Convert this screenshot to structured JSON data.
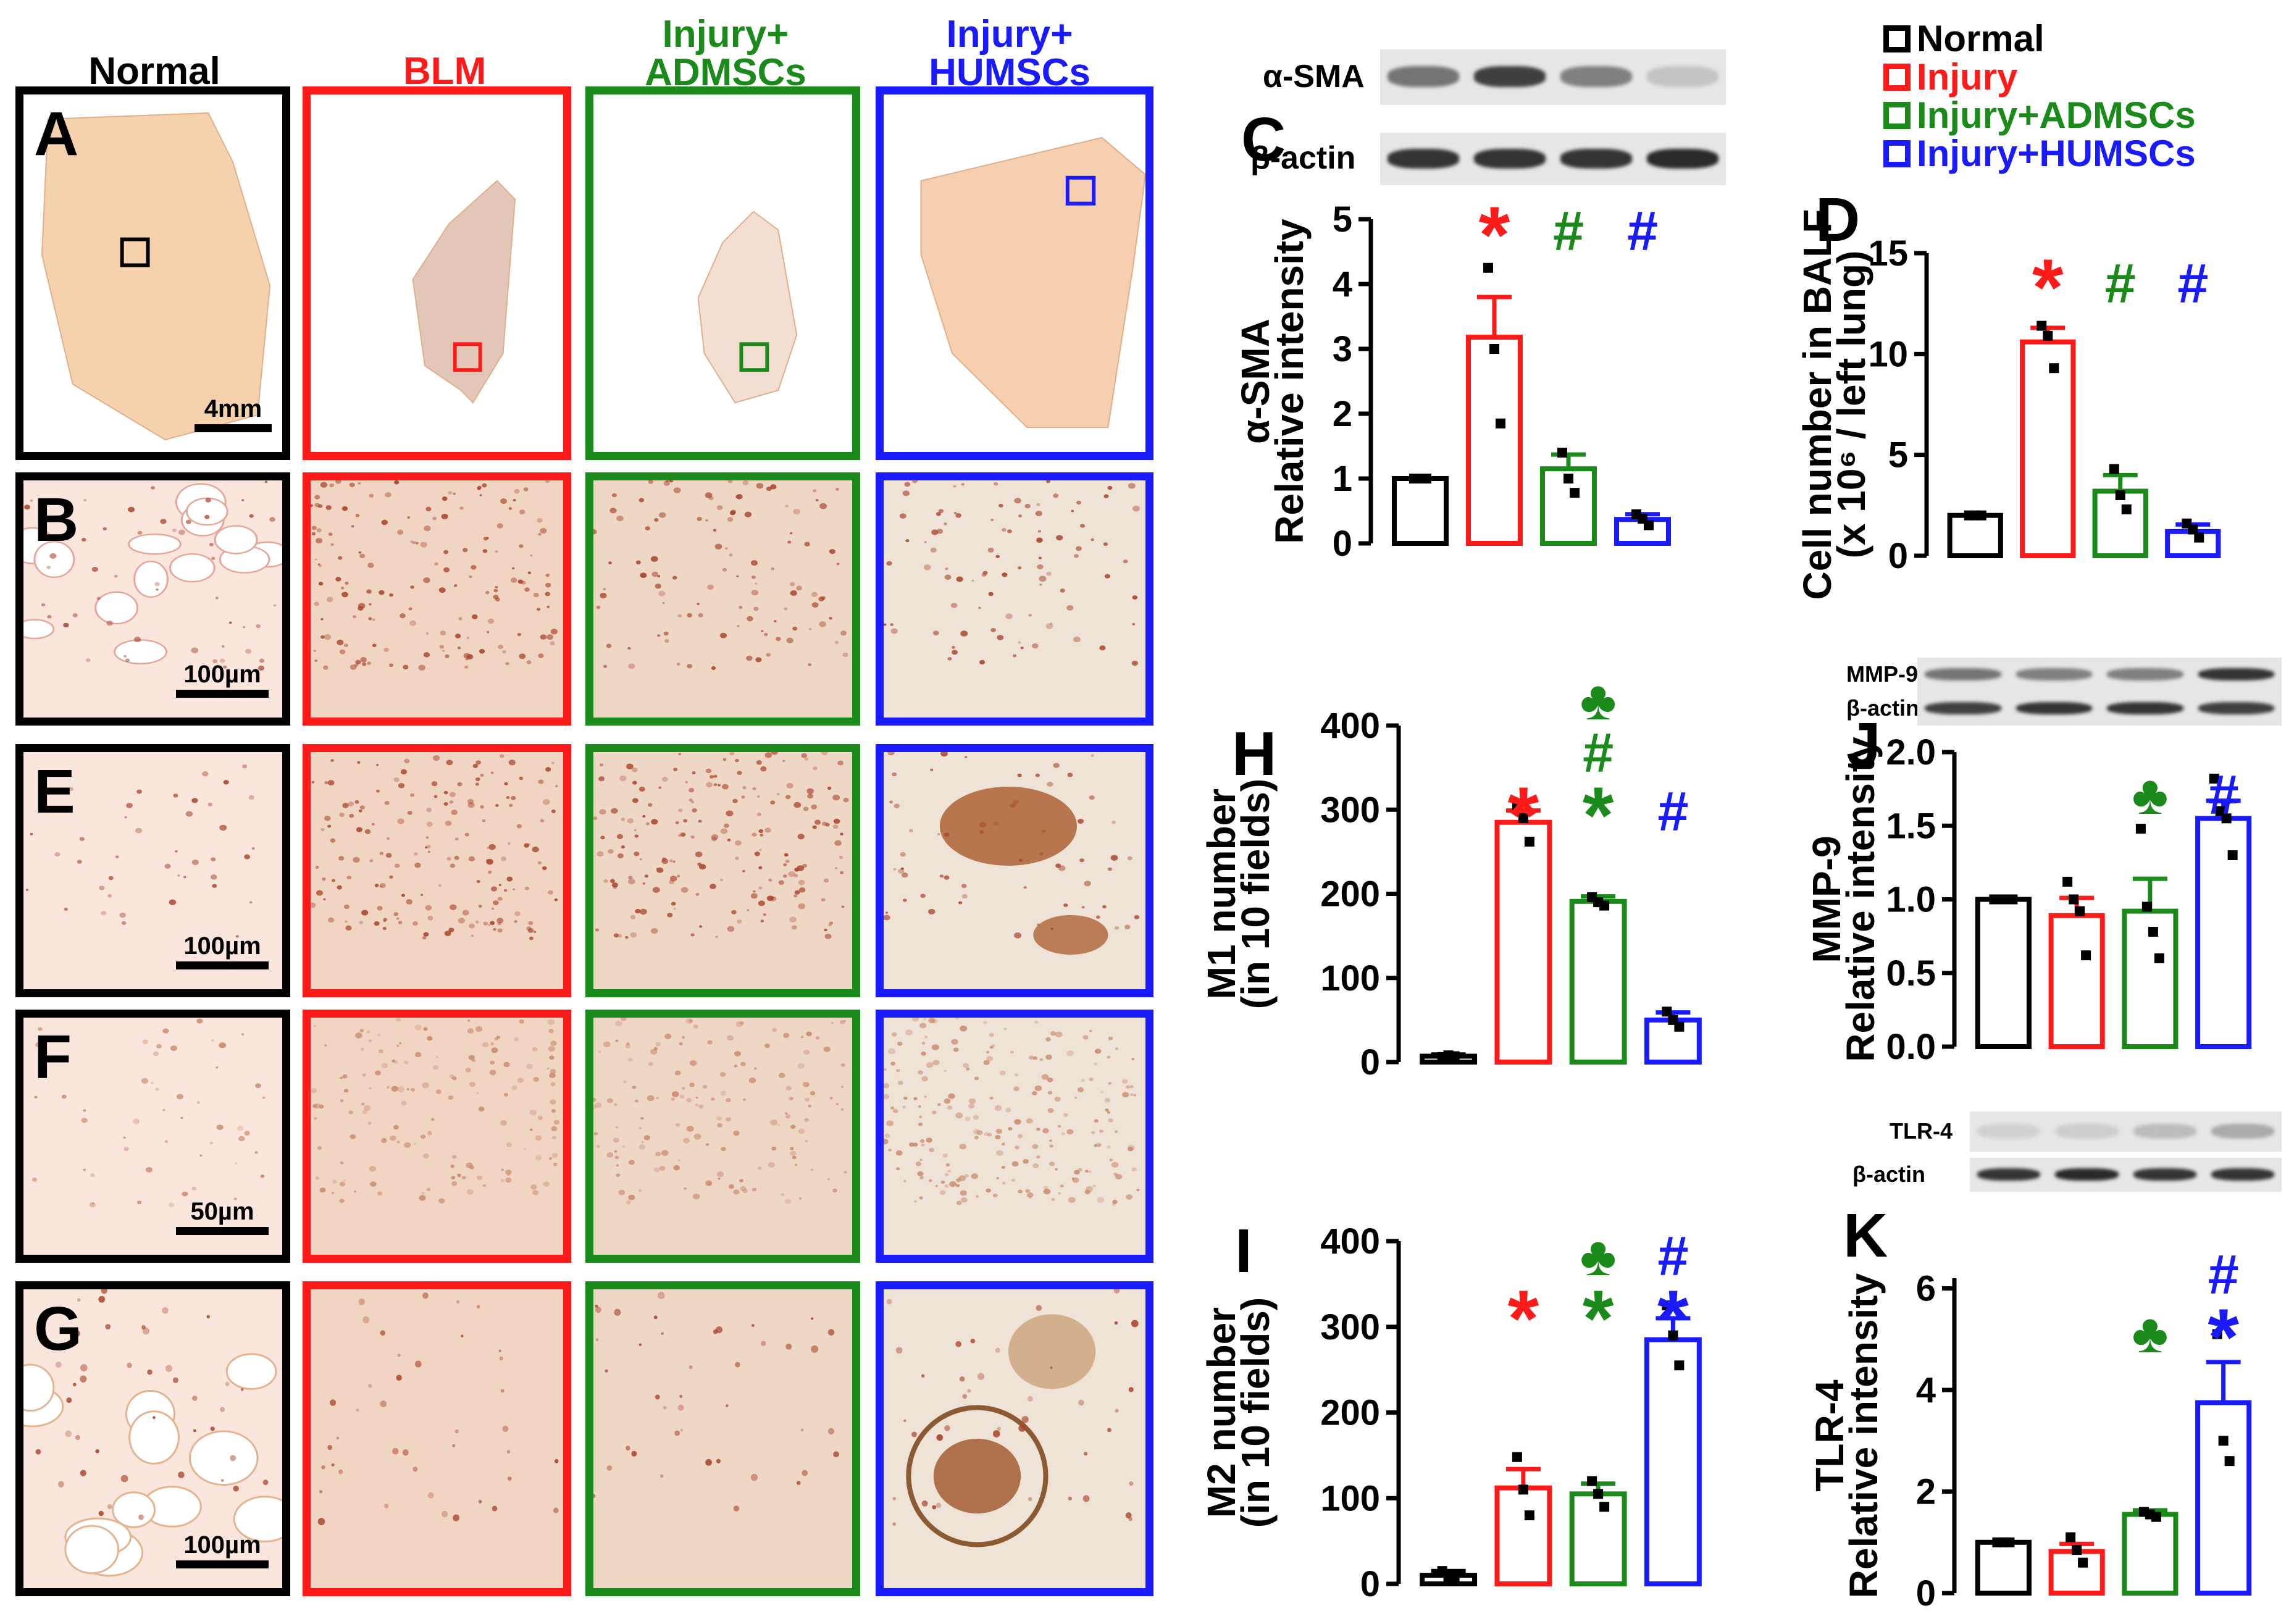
{
  "colors": {
    "normal": "#000000",
    "injury": "#ff1a1a",
    "admsc": "#1a8a1a",
    "humsc": "#1a1aff",
    "tissue": "#f4c9a2",
    "stain": "#b8552c"
  },
  "image_columns": [
    {
      "key": "normal",
      "label": "Normal"
    },
    {
      "key": "injury",
      "label": "BLM"
    },
    {
      "key": "admsc",
      "label": "Injury+\nADMSCs"
    },
    {
      "key": "humsc",
      "label": "Injury+\nHUMSCs"
    }
  ],
  "image_rows": [
    {
      "letter": "A",
      "scale": "4mm"
    },
    {
      "letter": "B",
      "scale": "100µm"
    },
    {
      "letter": "E",
      "scale": "100µm"
    },
    {
      "letter": "F",
      "scale": "50µm"
    },
    {
      "letter": "G",
      "scale": "100µm"
    }
  ],
  "legend": [
    {
      "key": "normal",
      "label": "Normal"
    },
    {
      "key": "injury",
      "label": "Injury"
    },
    {
      "key": "admsc",
      "label": "Injury+ADMSCs"
    },
    {
      "key": "humsc",
      "label": "Injury+HUMSCs"
    }
  ],
  "blots": {
    "C": {
      "rows": [
        "α-SMA",
        "β-actin"
      ]
    },
    "J": {
      "rows": [
        "MMP-9",
        "β-actin"
      ]
    },
    "K": {
      "rows": [
        "TLR-4",
        "β-actin"
      ]
    }
  },
  "symbols": {
    "asterisk": "*",
    "hash": "#",
    "club": "♣"
  },
  "chart_data": [
    {
      "id": "C",
      "type": "bar",
      "ylabel_line1": "α-SMA",
      "ylabel_line2": "Relative intensity",
      "ylim": [
        0,
        5
      ],
      "ticks": [
        0,
        1,
        2,
        3,
        4,
        5
      ],
      "tick_labels": [
        "0",
        "1",
        "2",
        "3",
        "4",
        "5"
      ],
      "groups": [
        "normal",
        "injury",
        "admsc",
        "humsc"
      ],
      "values": [
        1.0,
        3.18,
        1.15,
        0.37
      ],
      "errors": [
        0.0,
        0.62,
        0.22,
        0.08
      ],
      "points": [
        [
          1.0,
          1.0,
          1.0
        ],
        [
          4.25,
          3.0,
          1.85
        ],
        [
          1.4,
          1.0,
          0.78
        ],
        [
          0.45,
          0.38,
          0.28
        ]
      ],
      "marks": [
        [],
        [
          "asterisk"
        ],
        [
          "hash"
        ],
        [
          "hash"
        ]
      ]
    },
    {
      "id": "D",
      "type": "bar",
      "ylabel_line1": "Cell number in BALF",
      "ylabel_line2": "(x 10⁶ / left lung)",
      "ylim": [
        0,
        15
      ],
      "ticks": [
        0,
        5,
        10,
        15
      ],
      "tick_labels": [
        "0",
        "5",
        "10",
        "15"
      ],
      "groups": [
        "normal",
        "injury",
        "admsc",
        "humsc"
      ],
      "values": [
        2.0,
        10.6,
        3.2,
        1.2
      ],
      "errors": [
        0.0,
        0.7,
        0.8,
        0.35
      ],
      "points": [
        [
          2.0,
          2.0,
          2.0
        ],
        [
          11.4,
          10.9,
          9.3
        ],
        [
          4.3,
          3.0,
          2.3
        ],
        [
          1.6,
          1.3,
          0.9
        ]
      ],
      "marks": [
        [],
        [
          "asterisk"
        ],
        [
          "hash"
        ],
        [
          "hash"
        ]
      ]
    },
    {
      "id": "H",
      "type": "bar",
      "ylabel_line1": "M1 number",
      "ylabel_line2": "(in 10 fields)",
      "ylim": [
        0,
        400
      ],
      "ticks": [
        0,
        100,
        200,
        300,
        400
      ],
      "tick_labels": [
        "0",
        "100",
        "200",
        "300",
        "400"
      ],
      "groups": [
        "normal",
        "injury",
        "admsc",
        "humsc"
      ],
      "values": [
        7,
        285,
        191,
        50
      ],
      "errors": [
        2,
        14,
        6,
        9
      ],
      "points": [
        [
          6,
          8,
          7
        ],
        [
          305,
          290,
          262
        ],
        [
          196,
          190,
          186
        ],
        [
          60,
          50,
          42
        ]
      ],
      "marks": [
        [],
        [
          "asterisk"
        ],
        [
          "asterisk",
          "hash",
          "club"
        ],
        [
          "hash"
        ]
      ]
    },
    {
      "id": "I",
      "type": "bar",
      "ylabel_line1": "M2 number",
      "ylabel_line2": "(in 10 fields)",
      "ylim": [
        0,
        400
      ],
      "ticks": [
        0,
        100,
        200,
        300,
        400
      ],
      "tick_labels": [
        "0",
        "100",
        "200",
        "300",
        "400"
      ],
      "groups": [
        "normal",
        "injury",
        "admsc",
        "humsc"
      ],
      "values": [
        10,
        112,
        105,
        285
      ],
      "errors": [
        5,
        22,
        12,
        25
      ],
      "points": [
        [
          15,
          8,
          5
        ],
        [
          148,
          110,
          80
        ],
        [
          120,
          105,
          90
        ],
        [
          325,
          290,
          255
        ]
      ],
      "marks": [
        [],
        [
          "asterisk"
        ],
        [
          "asterisk",
          "club"
        ],
        [
          "asterisk",
          "hash"
        ]
      ]
    },
    {
      "id": "J",
      "type": "bar",
      "ylabel_line1": "MMP-9",
      "ylabel_line2": "Relative intensity",
      "ylim": [
        0,
        2.0
      ],
      "ticks": [
        0,
        0.5,
        1.0,
        1.5,
        2.0
      ],
      "tick_labels": [
        "0.0",
        "0.5",
        "1.0",
        "1.5",
        "2.0"
      ],
      "groups": [
        "normal",
        "injury",
        "admsc",
        "humsc"
      ],
      "values": [
        1.0,
        0.89,
        0.92,
        1.55
      ],
      "errors": [
        0.0,
        0.12,
        0.22,
        0.12
      ],
      "points": [
        [
          1.0,
          1.0,
          1.0,
          1.0
        ],
        [
          1.12,
          1.0,
          0.92,
          0.62
        ],
        [
          1.48,
          0.95,
          0.78,
          0.6
        ],
        [
          1.82,
          1.6,
          1.55,
          1.3
        ]
      ],
      "marks": [
        [],
        [],
        [
          "club"
        ],
        [
          "hash"
        ]
      ]
    },
    {
      "id": "K",
      "type": "bar",
      "ylabel_line1": "TLR-4",
      "ylabel_line2": "Relative intensity",
      "ylim": [
        0,
        6.2
      ],
      "ticks": [
        0,
        2,
        4,
        6
      ],
      "tick_labels": [
        "0",
        "2",
        "4",
        "6"
      ],
      "groups": [
        "normal",
        "injury",
        "admsc",
        "humsc"
      ],
      "values": [
        1.0,
        0.82,
        1.55,
        3.75
      ],
      "errors": [
        0.0,
        0.15,
        0.08,
        0.8
      ],
      "points": [
        [
          1.0,
          1.0,
          1.0
        ],
        [
          1.1,
          0.85,
          0.6
        ],
        [
          1.6,
          1.55,
          1.5
        ],
        [
          5.1,
          3.0,
          2.6
        ]
      ],
      "marks": [
        [],
        [],
        [
          "club"
        ],
        [
          "asterisk",
          "hash"
        ]
      ]
    }
  ]
}
